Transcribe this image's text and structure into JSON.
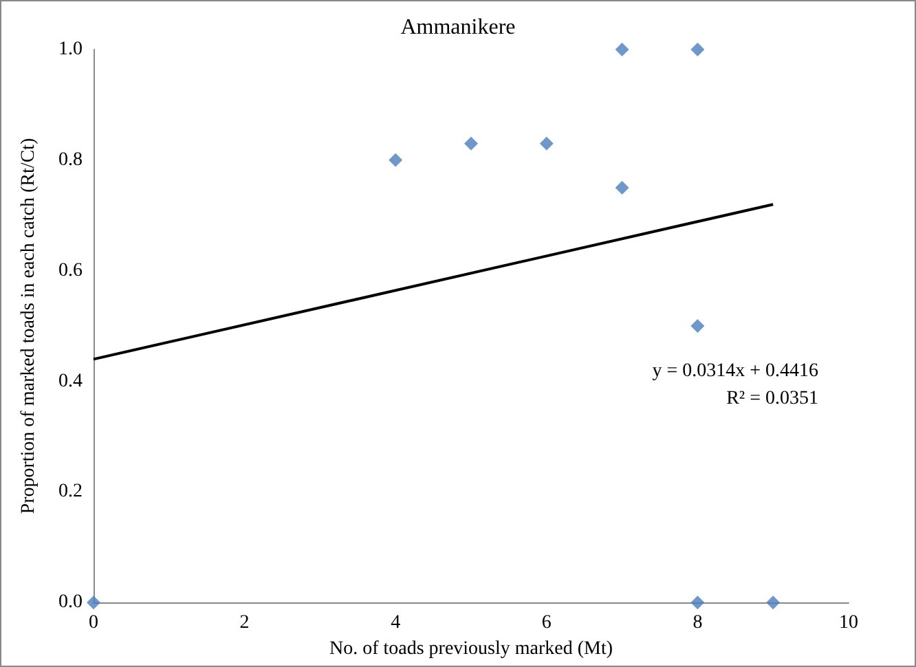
{
  "chart_data": {
    "type": "scatter",
    "title": "Ammanikere",
    "xlabel": "No. of toads previously marked (Mt)",
    "ylabel": "Proportion of marked toads in each catch (Rt/Ct)",
    "series": [
      {
        "color": "#4a7ebb",
        "marker": "diamond",
        "x": [
          0,
          4,
          5,
          6,
          7,
          7,
          8,
          8,
          8,
          9
        ],
        "values": [
          0,
          0.8,
          0.83,
          0.83,
          1.0,
          0.75,
          1.0,
          0.5,
          0,
          0
        ]
      },
      {
        "type": "line",
        "color": "#000000",
        "marker": "none",
        "x": [
          0,
          9
        ],
        "values": [
          0.44,
          0.72
        ]
      }
    ],
    "xlim": [
      0,
      10
    ],
    "xticks": [
      0,
      2,
      4,
      6,
      8,
      10
    ],
    "ylim": [
      0,
      1
    ],
    "yticks": [
      {
        "value": 0,
        "label": "0.0"
      },
      {
        "value": 0.2,
        "label": "0.2"
      },
      {
        "value": 0.4,
        "label": "0.4"
      },
      {
        "value": 0.6,
        "label": "0.6"
      },
      {
        "value": 0.8,
        "label": "0.8"
      },
      {
        "value": 1,
        "label": "1.0"
      }
    ],
    "grid": false,
    "annotations": [
      "y = 0.0314x + 0.4416",
      "R² = 0.0351"
    ]
  }
}
